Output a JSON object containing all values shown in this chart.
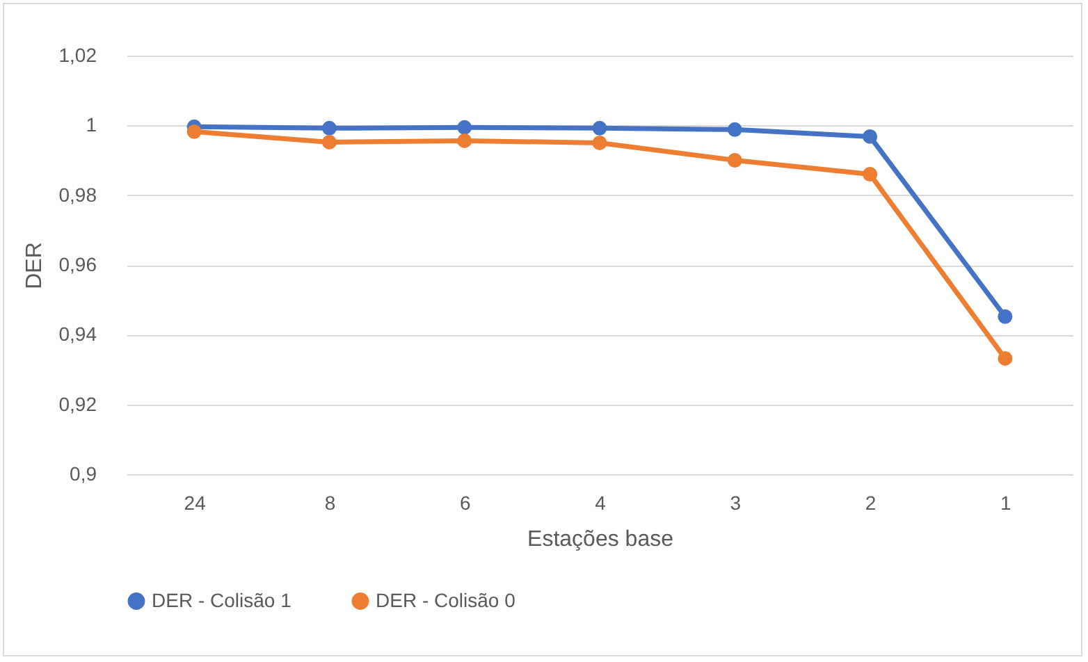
{
  "chart_data": {
    "type": "line",
    "xlabel": "Estações base",
    "ylabel": "DER",
    "categories": [
      "24",
      "8",
      "6",
      "4",
      "3",
      "2",
      "1"
    ],
    "series": [
      {
        "name": "DER - Colisão 1",
        "color": "#4472c4",
        "values": [
          0.9996,
          0.9992,
          0.9994,
          0.9992,
          0.9988,
          0.9968,
          0.9452
        ]
      },
      {
        "name": "DER - Colisão 0",
        "color": "#ed7d31",
        "values": [
          0.9982,
          0.9952,
          0.9956,
          0.995,
          0.99,
          0.986,
          0.9332
        ]
      }
    ],
    "ylim": [
      0.9,
      1.02
    ],
    "yticks": [
      {
        "value": 0.9,
        "label": "0,9"
      },
      {
        "value": 0.92,
        "label": "0,92"
      },
      {
        "value": 0.94,
        "label": "0,94"
      },
      {
        "value": 0.96,
        "label": "0,96"
      },
      {
        "value": 0.98,
        "label": "0,98"
      },
      1,
      {
        "value": 1.02,
        "label": "1,02"
      }
    ],
    "grid": "y",
    "legend": "bottom",
    "marker": "circle",
    "line_style": "solid"
  }
}
